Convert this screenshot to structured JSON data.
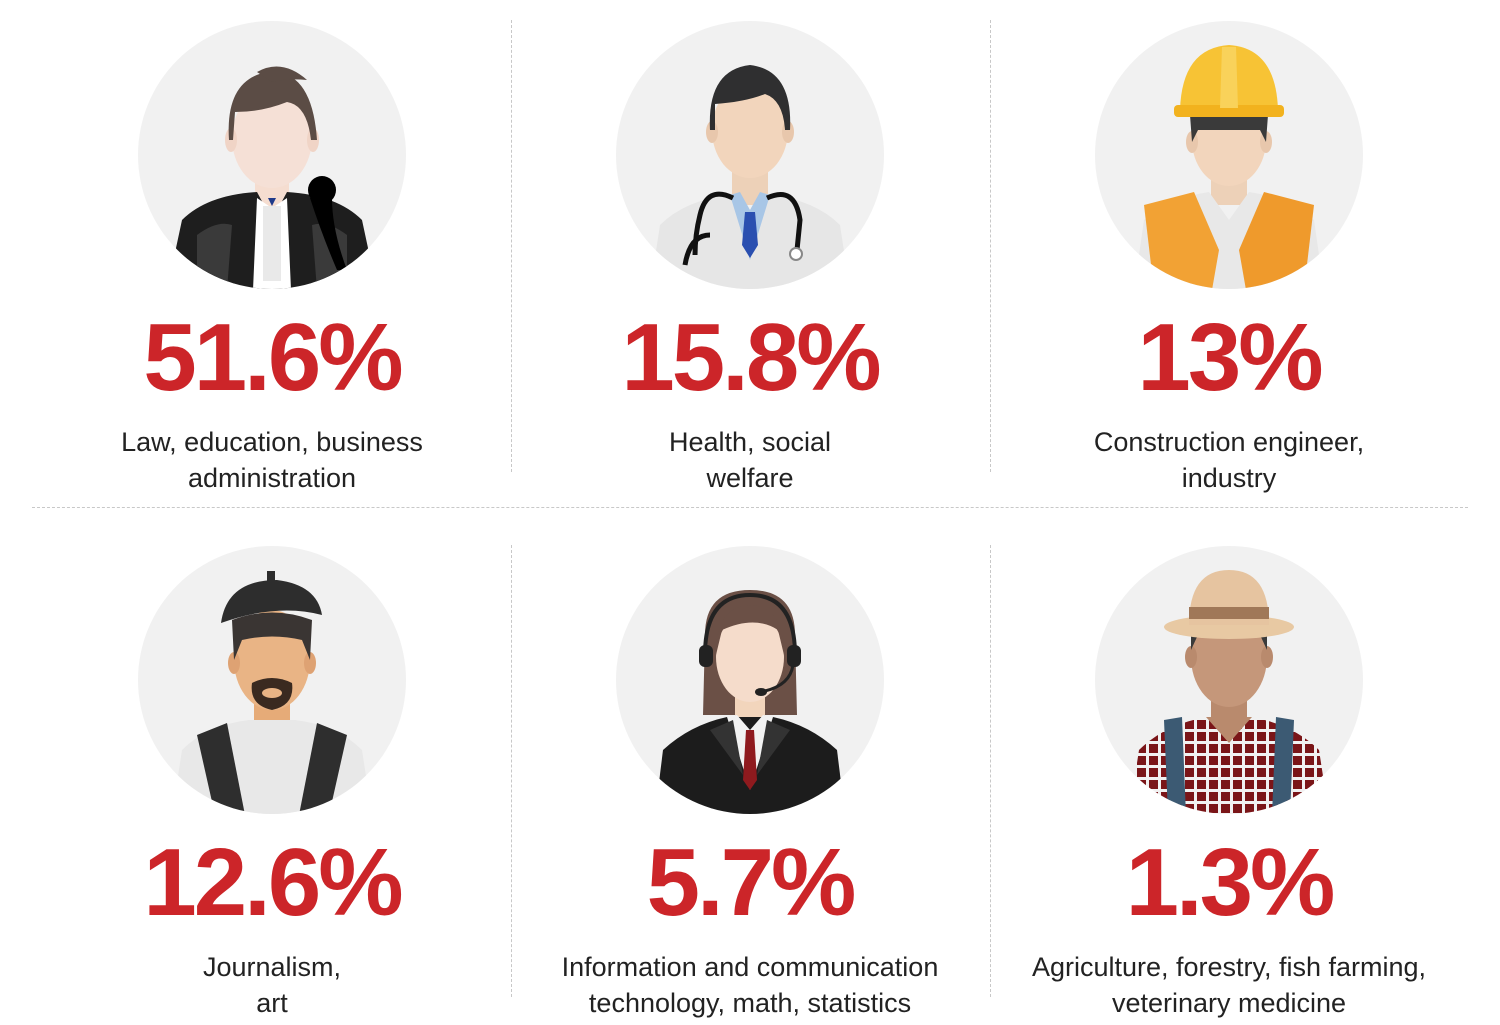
{
  "colors": {
    "accent": "#cc2529",
    "text": "#222222",
    "circle": "#f1f1f1",
    "divider": "#c8c8c8"
  },
  "items": [
    {
      "icon": "judge-icon",
      "percent": "51.6%",
      "label_lines": [
        "Law, education, business",
        "administration"
      ]
    },
    {
      "icon": "doctor-icon",
      "percent": "15.8%",
      "label_lines": [
        "Health, social",
        "welfare"
      ]
    },
    {
      "icon": "construction-worker-icon",
      "percent": "13%",
      "label_lines": [
        "Construction engineer,",
        "industry"
      ]
    },
    {
      "icon": "artist-icon",
      "percent": "12.6%",
      "label_lines": [
        "Journalism,",
        "art"
      ]
    },
    {
      "icon": "call-center-agent-icon",
      "percent": "5.7%",
      "label_lines": [
        "Information and communication",
        "technology, math, statistics"
      ]
    },
    {
      "icon": "farmer-icon",
      "percent": "1.3%",
      "label_lines": [
        "Agriculture, forestry, fish farming,",
        "veterinary medicine"
      ]
    }
  ]
}
